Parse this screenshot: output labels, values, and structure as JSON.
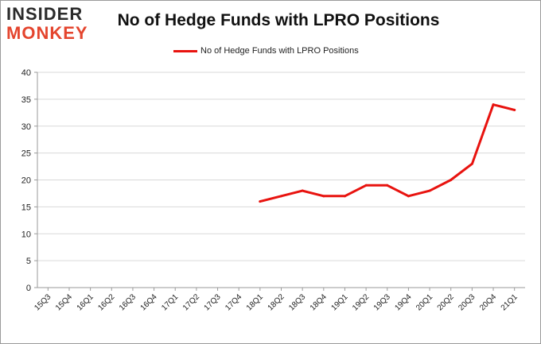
{
  "logo": {
    "line1": "INSIDER",
    "line2": "MONKEY"
  },
  "colors": {
    "series": "#e8130f",
    "grid": "#d9d9d9",
    "axis": "#9a9a9a"
  },
  "chart_data": {
    "type": "line",
    "title": "No of Hedge Funds with LPRO Positions",
    "xlabel": "",
    "ylabel": "",
    "ylim": [
      0,
      40
    ],
    "yticks": [
      0,
      5,
      10,
      15,
      20,
      25,
      30,
      35,
      40
    ],
    "grid": true,
    "legend_placement": "top-center",
    "categories": [
      "15Q3",
      "15Q4",
      "16Q1",
      "16Q2",
      "16Q3",
      "16Q4",
      "17Q1",
      "17Q2",
      "17Q3",
      "17Q4",
      "18Q1",
      "18Q2",
      "18Q3",
      "18Q4",
      "19Q1",
      "19Q2",
      "19Q3",
      "19Q4",
      "20Q1",
      "20Q2",
      "20Q3",
      "20Q4",
      "21Q1"
    ],
    "series": [
      {
        "name": "No of Hedge Funds with LPRO Positions",
        "values": [
          null,
          null,
          null,
          null,
          null,
          null,
          null,
          null,
          null,
          null,
          16,
          17,
          18,
          17,
          17,
          19,
          19,
          17,
          18,
          20,
          23,
          34,
          33
        ]
      }
    ]
  }
}
